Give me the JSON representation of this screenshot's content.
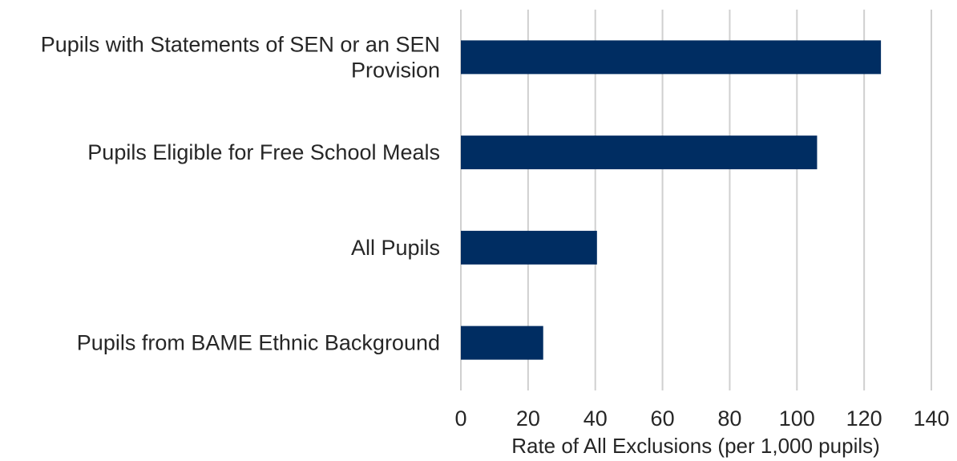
{
  "chart_data": {
    "type": "bar",
    "orientation": "horizontal",
    "categories": [
      "Pupils with Statements of SEN or an SEN Provision",
      "Pupils Eligible for Free School Meals",
      "All Pupils",
      "Pupils from BAME Ethnic Background"
    ],
    "category_lines": [
      [
        "Pupils with Statements of SEN or an SEN",
        "Provision"
      ],
      [
        "Pupils Eligible for Free School Meals"
      ],
      [
        "All Pupils"
      ],
      [
        "Pupils from BAME Ethnic Background"
      ]
    ],
    "values": [
      125,
      106,
      40.5,
      24.5
    ],
    "title": "",
    "xlabel": "Rate of All Exclusions (per 1,000 pupils)",
    "ylabel": "",
    "xlim": [
      0,
      140
    ],
    "xticks": [
      0,
      20,
      40,
      60,
      80,
      100,
      120,
      140
    ],
    "grid": true,
    "legend": "none",
    "bar_color": "#002d62",
    "grid_color": "#d0d0d0"
  }
}
